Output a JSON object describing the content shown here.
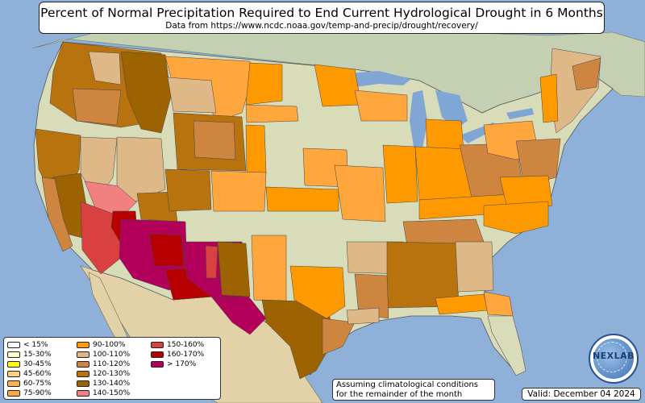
{
  "title": "Percent of Normal Precipitation Required to End Current Hydrological Drought in 6 Months",
  "subtitle": "Data from https://www.ncdc.noaa.gov/temp-and-precip/drought/recovery/",
  "legend": [
    {
      "label": "< 15%",
      "color": "#ffffff"
    },
    {
      "label": "15-30%",
      "color": "#ffffcc"
    },
    {
      "label": "30-45%",
      "color": "#ffff00"
    },
    {
      "label": "45-60%",
      "color": "#ffd27a"
    },
    {
      "label": "60-75%",
      "color": "#ffb347"
    },
    {
      "label": "75-90%",
      "color": "#ffa63d"
    },
    {
      "label": "90-100%",
      "color": "#ff9900"
    },
    {
      "label": "100-110%",
      "color": "#deb887"
    },
    {
      "label": "110-120%",
      "color": "#cd853f"
    },
    {
      "label": "120-130%",
      "color": "#b8730f"
    },
    {
      "label": "130-140%",
      "color": "#9c6300"
    },
    {
      "label": "140-150%",
      "color": "#f28080"
    },
    {
      "label": "150-160%",
      "color": "#d94040"
    },
    {
      "label": "160-170%",
      "color": "#b80000"
    },
    {
      "label": "> 170%",
      "color": "#b3005a"
    }
  ],
  "note": {
    "line1": "Assuming climatological conditions",
    "line2": "for the remainder of the month"
  },
  "valid": "Valid: December 04 2024",
  "logo_text": "NEXLAB",
  "colors": {
    "ocean": "#8fb0d8",
    "land": "#d8dcb8",
    "mexico": "#e3d2a8",
    "canada": "#c5d0b2",
    "lake": "#7fa6d4"
  }
}
